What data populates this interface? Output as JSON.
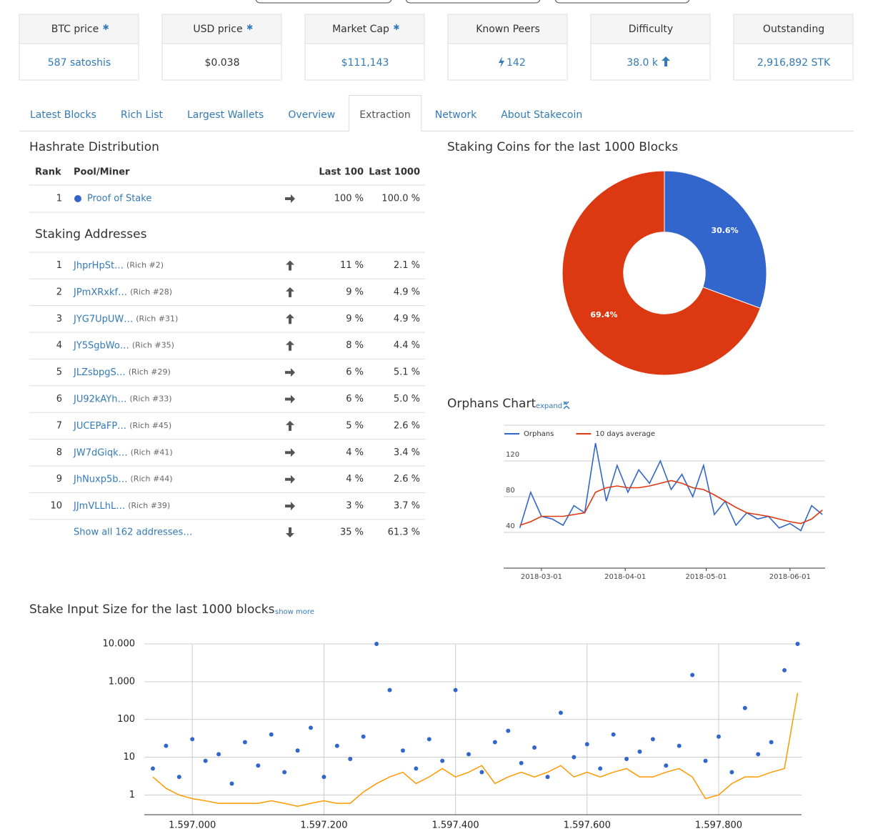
{
  "stats": [
    {
      "label": "BTC price",
      "starred": true,
      "value": "587 satoshis",
      "color": "#337ab7"
    },
    {
      "label": "USD price",
      "starred": true,
      "value": "$0.038",
      "color": "#333333"
    },
    {
      "label": "Market Cap",
      "starred": true,
      "value": "$111,143",
      "color": "#337ab7"
    },
    {
      "label": "Known Peers",
      "starred": false,
      "value": "142",
      "icon": "bolt",
      "color": "#337ab7"
    },
    {
      "label": "Difficulty",
      "starred": false,
      "value": "38.0 k",
      "icon": "up",
      "color": "#337ab7"
    },
    {
      "label": "Outstanding",
      "starred": false,
      "value": "2,916,892 STK",
      "color": "#337ab7"
    }
  ],
  "tabs": [
    {
      "label": "Latest Blocks",
      "active": false
    },
    {
      "label": "Rich List",
      "active": false
    },
    {
      "label": "Largest Wallets",
      "active": false
    },
    {
      "label": "Overview",
      "active": false
    },
    {
      "label": "Extraction",
      "active": true
    },
    {
      "label": "Network",
      "active": false
    },
    {
      "label": "About Stakecoin",
      "active": false
    }
  ],
  "hashrate": {
    "title": "Hashrate Distribution",
    "columns": [
      "Rank",
      "Pool/Miner",
      "Last 100",
      "Last 1000"
    ],
    "rows": [
      {
        "rank": 1,
        "name": "Proof of Stake",
        "color": "#3366cc",
        "trend": "right",
        "last100": "100 %",
        "last1000": "100.0 %"
      }
    ]
  },
  "staking": {
    "title": "Staking Addresses",
    "rows": [
      {
        "rank": 1,
        "address": "JhprHpSt…",
        "rich": "(Rich #2)",
        "trend": "up",
        "last100": "11 %",
        "last1000": "2.1 %"
      },
      {
        "rank": 2,
        "address": "JPmXRxkf…",
        "rich": "(Rich #28)",
        "trend": "up",
        "last100": "9 %",
        "last1000": "4.9 %"
      },
      {
        "rank": 3,
        "address": "JYG7UpUW…",
        "rich": "(Rich #31)",
        "trend": "up",
        "last100": "9 %",
        "last1000": "4.9 %"
      },
      {
        "rank": 4,
        "address": "JY5SgbWo…",
        "rich": "(Rich #35)",
        "trend": "up",
        "last100": "8 %",
        "last1000": "4.4 %"
      },
      {
        "rank": 5,
        "address": "JLZsbpgS…",
        "rich": "(Rich #29)",
        "trend": "right",
        "last100": "6 %",
        "last1000": "5.1 %"
      },
      {
        "rank": 6,
        "address": "JU92kAYh…",
        "rich": "(Rich #33)",
        "trend": "right",
        "last100": "6 %",
        "last1000": "5.0 %"
      },
      {
        "rank": 7,
        "address": "JUCEPaFP…",
        "rich": "(Rich #45)",
        "trend": "up",
        "last100": "5 %",
        "last1000": "2.6 %"
      },
      {
        "rank": 8,
        "address": "JW7dGiqk…",
        "rich": "(Rich #41)",
        "trend": "right",
        "last100": "4 %",
        "last1000": "3.4 %"
      },
      {
        "rank": 9,
        "address": "JhNuxp5b…",
        "rich": "(Rich #44)",
        "trend": "right",
        "last100": "4 %",
        "last1000": "2.6 %"
      },
      {
        "rank": 10,
        "address": "JJmVLLhL…",
        "rich": "(Rich #39)",
        "trend": "right",
        "last100": "3 %",
        "last1000": "3.7 %"
      }
    ],
    "footer": {
      "text": "Show all 162 addresses…",
      "trend": "down",
      "last100": "35 %",
      "last1000": "61.3 %"
    }
  },
  "pie": {
    "type": "pie",
    "title": "Staking Coins for the last 1000 Blocks",
    "values": [
      30.6,
      69.4
    ],
    "value_labels": [
      "30.6%",
      "69.4%"
    ],
    "colors": [
      "#3366cc",
      "#dc3912"
    ],
    "hole": 0.4
  },
  "orphans": {
    "type": "line",
    "title": "Orphans Chart",
    "annotation": "expand",
    "x": [
      "2018-02-21",
      "2018-02-25",
      "2018-03-01",
      "2018-03-05",
      "2018-03-09",
      "2018-03-13",
      "2018-03-17",
      "2018-03-21",
      "2018-03-25",
      "2018-03-29",
      "2018-04-02",
      "2018-04-06",
      "2018-04-10",
      "2018-04-14",
      "2018-04-18",
      "2018-04-22",
      "2018-04-26",
      "2018-04-30",
      "2018-05-04",
      "2018-05-08",
      "2018-05-12",
      "2018-05-16",
      "2018-05-20",
      "2018-05-24",
      "2018-05-28",
      "2018-06-01",
      "2018-06-05",
      "2018-06-09",
      "2018-06-13"
    ],
    "series": [
      {
        "name": "Orphans",
        "color": "#3366cc",
        "values": [
          45,
          85,
          58,
          55,
          48,
          70,
          62,
          140,
          75,
          115,
          85,
          110,
          95,
          120,
          88,
          105,
          80,
          115,
          60,
          75,
          48,
          62,
          55,
          58,
          45,
          50,
          42,
          70,
          60
        ]
      },
      {
        "name": "10 days average",
        "color": "#dc3912",
        "values": [
          48,
          52,
          58,
          58,
          58,
          60,
          62,
          85,
          90,
          92,
          90,
          90,
          92,
          95,
          98,
          95,
          90,
          88,
          82,
          75,
          68,
          62,
          60,
          58,
          55,
          52,
          50,
          55,
          65
        ]
      }
    ],
    "xlim": [
      "2018-02-15",
      "2018-06-14"
    ],
    "xticks": [
      "2018-03-01",
      "2018-04-01",
      "2018-05-01",
      "2018-06-01"
    ],
    "ylim": [
      0,
      160
    ],
    "yticks": [
      40,
      80,
      120
    ],
    "grid": true,
    "legend": "top"
  },
  "stake": {
    "type": "scatter",
    "title": "Stake Input Size for the last 1000 blocks",
    "annotation": "show more",
    "x": [
      1596940,
      1596960,
      1596980,
      1597000,
      1597020,
      1597040,
      1597060,
      1597080,
      1597100,
      1597120,
      1597140,
      1597160,
      1597180,
      1597200,
      1597220,
      1597240,
      1597260,
      1597280,
      1597300,
      1597320,
      1597340,
      1597360,
      1597380,
      1597400,
      1597420,
      1597440,
      1597460,
      1597480,
      1597500,
      1597520,
      1597540,
      1597560,
      1597580,
      1597600,
      1597620,
      1597640,
      1597660,
      1597680,
      1597700,
      1597720,
      1597740,
      1597760,
      1597780,
      1597800,
      1597820,
      1597840,
      1597860,
      1597880,
      1597900,
      1597920
    ],
    "series": [
      {
        "type": "scatter",
        "color": "#3366cc",
        "values": [
          5,
          20,
          3,
          30,
          8,
          12,
          2,
          25,
          6,
          40,
          4,
          15,
          60,
          3,
          20,
          9,
          35,
          10000,
          600,
          15,
          5,
          30,
          8,
          600,
          12,
          4,
          25,
          50,
          7,
          18,
          3,
          150,
          10,
          22,
          5,
          40,
          9,
          14,
          30,
          6,
          20,
          1500,
          8,
          35,
          4,
          200,
          12,
          25,
          2000,
          10000
        ]
      },
      {
        "type": "line",
        "color": "#ff9900",
        "values": [
          3,
          1.5,
          1,
          0.8,
          0.7,
          0.6,
          0.6,
          0.6,
          0.6,
          0.7,
          0.6,
          0.5,
          0.6,
          0.7,
          0.6,
          0.6,
          1.2,
          2,
          3,
          4,
          2,
          3,
          5,
          3,
          4,
          6,
          2,
          3,
          4,
          3,
          4,
          6,
          3,
          4,
          3,
          4,
          5,
          3,
          3,
          4,
          5,
          3,
          0.8,
          1,
          2,
          3,
          3,
          4,
          5,
          500
        ]
      }
    ],
    "xlim": [
      1596927,
      1597926
    ],
    "xticks": [
      {
        "value": 1597000,
        "label": "1.597.000"
      },
      {
        "value": 1597200,
        "label": "1.597.200"
      },
      {
        "value": 1597400,
        "label": "1.597.400"
      },
      {
        "value": 1597600,
        "label": "1.597.600"
      },
      {
        "value": 1597800,
        "label": "1.597.800"
      }
    ],
    "ylim": [
      0.3,
      10000
    ],
    "log": true,
    "yticks": [
      1,
      10,
      100,
      {
        "value": 1000,
        "label": "1.000"
      },
      {
        "value": 10000,
        "label": "10.000"
      }
    ],
    "grid": true
  }
}
